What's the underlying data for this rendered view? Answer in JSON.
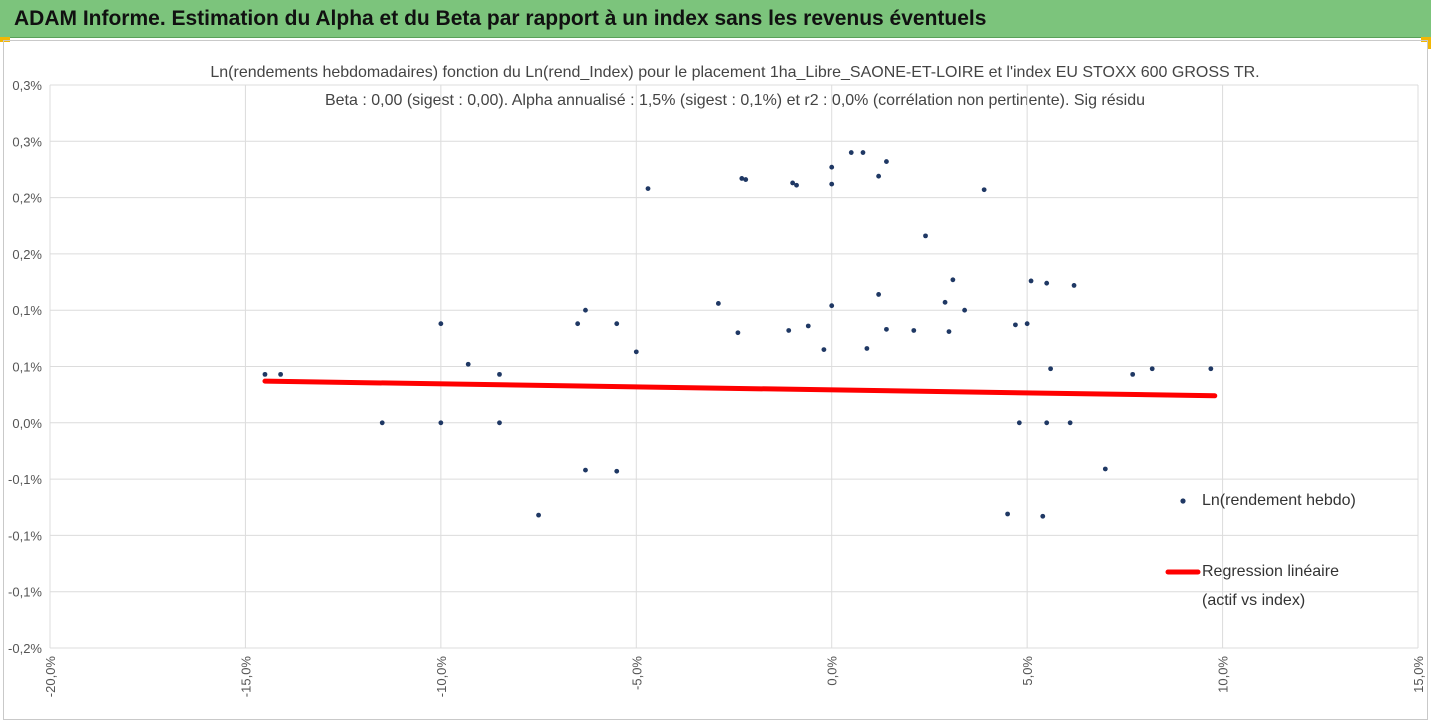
{
  "header": {
    "title": "ADAM Informe. Estimation du Alpha et du Beta par rapport à un index sans les revenus éventuels",
    "accent": "#f2b705",
    "background": "#7cc47c"
  },
  "chart_data": {
    "type": "scatter",
    "title": "Ln(rendements hebdomadaires) fonction du Ln(rend_Index) pour le placement 1ha_Libre_SAONE-ET-LOIRE et l'index EU STOXX 600 GROSS TR.",
    "subtitle": "Beta : 0,00 (sigest : 0,00).  Alpha annualisé : 1,5% (sigest : 0,1%) et r2 : 0,0% (corrélation non pertinente). Sig résidu",
    "xlabel": "",
    "ylabel": "",
    "xlim": [
      -0.2,
      0.15
    ],
    "ylim": [
      -0.002,
      0.003
    ],
    "x_ticks": [
      -0.2,
      -0.15,
      -0.1,
      -0.05,
      0.0,
      0.05,
      0.1,
      0.15
    ],
    "x_tick_labels": [
      "-20,0%",
      "-15,0%",
      "-10,0%",
      "-5,0%",
      "0,0%",
      "5,0%",
      "10,0%",
      "15,0%"
    ],
    "y_ticks": [
      -0.002,
      -0.0015,
      -0.001,
      -0.0005,
      0.0,
      0.0005,
      0.001,
      0.0015,
      0.002,
      0.0025,
      0.003
    ],
    "y_tick_labels": [
      "-0,2%",
      "-0,1%",
      "-0,1%",
      "-0,1%",
      "0,0%",
      "0,1%",
      "0,1%",
      "0,2%",
      "0,2%",
      "0,3%",
      "0,3%"
    ],
    "grid": true,
    "legend_position": "right",
    "series": [
      {
        "name": "Ln(rendement hebdo)",
        "kind": "scatter",
        "color": "#1f3864",
        "points": [
          [
            -0.145,
            0.00043
          ],
          [
            -0.141,
            0.00043
          ],
          [
            -0.115,
            0.0
          ],
          [
            -0.1,
            0.0
          ],
          [
            -0.085,
            0.0
          ],
          [
            -0.1,
            0.00088
          ],
          [
            -0.093,
            0.00052
          ],
          [
            -0.085,
            0.00043
          ],
          [
            -0.075,
            -0.00082
          ],
          [
            -0.063,
            -0.00042
          ],
          [
            -0.055,
            -0.00043
          ],
          [
            -0.065,
            0.00088
          ],
          [
            -0.063,
            0.001
          ],
          [
            -0.055,
            0.00088
          ],
          [
            -0.047,
            0.00208
          ],
          [
            -0.05,
            0.00063
          ],
          [
            -0.029,
            0.00106
          ],
          [
            -0.023,
            0.00217
          ],
          [
            -0.022,
            0.00216
          ],
          [
            -0.01,
            0.00213
          ],
          [
            -0.009,
            0.00211
          ],
          [
            0.0,
            0.00227
          ],
          [
            0.005,
            0.0024
          ],
          [
            0.012,
            0.00219
          ],
          [
            0.0,
            0.00212
          ],
          [
            0.008,
            0.0024
          ],
          [
            0.014,
            0.00232
          ],
          [
            0.039,
            0.00207
          ],
          [
            0.024,
            0.00166
          ],
          [
            0.051,
            0.00126
          ],
          [
            0.055,
            0.00124
          ],
          [
            0.062,
            0.00122
          ],
          [
            0.034,
            0.001
          ],
          [
            0.047,
            0.00087
          ],
          [
            0.05,
            0.00088
          ],
          [
            0.056,
            0.00048
          ],
          [
            0.077,
            0.00043
          ],
          [
            0.082,
            0.00048
          ],
          [
            0.097,
            0.00048
          ],
          [
            0.061,
            0.0
          ],
          [
            0.055,
            0.0
          ],
          [
            0.048,
            0.0
          ],
          [
            0.07,
            -0.00041
          ],
          [
            0.054,
            -0.00083
          ],
          [
            0.045,
            -0.00081
          ],
          [
            -0.024,
            0.0008
          ],
          [
            -0.011,
            0.00082
          ],
          [
            0.014,
            0.00083
          ],
          [
            0.021,
            0.00082
          ],
          [
            0.03,
            0.00081
          ],
          [
            0.031,
            0.00127
          ],
          [
            0.029,
            0.00107
          ],
          [
            0.0,
            0.00104
          ],
          [
            0.012,
            0.00114
          ],
          [
            -0.006,
            0.00086
          ],
          [
            -0.002,
            0.00065
          ],
          [
            0.009,
            0.00066
          ]
        ]
      },
      {
        "name": "Regression linéaire (actif vs index)",
        "kind": "line",
        "color": "#ff0000",
        "points": [
          [
            -0.145,
            0.00037
          ],
          [
            0.098,
            0.00024
          ]
        ]
      }
    ]
  },
  "legend": {
    "scatter_label": "Ln(rendement hebdo)",
    "line_label_1": "Regression linéaire",
    "line_label_2": "(actif vs index)"
  }
}
